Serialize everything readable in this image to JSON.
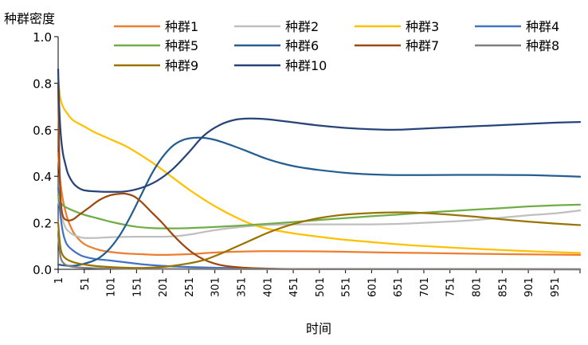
{
  "chart_data": {
    "type": "line",
    "title": "",
    "ylabel": "种群密度",
    "xlabel": "时间",
    "xlim": [
      1,
      1000
    ],
    "ylim": [
      0,
      1.0
    ],
    "grid": false,
    "legend_position": "top",
    "x_ticks": [
      1,
      51,
      101,
      151,
      201,
      251,
      301,
      351,
      401,
      451,
      501,
      551,
      601,
      651,
      701,
      751,
      801,
      851,
      901,
      951
    ],
    "x_tick_labels": [
      "1",
      "51",
      "101",
      "151",
      "201",
      "251",
      "301",
      "351",
      "401",
      "451",
      "501",
      "551",
      "601",
      "651",
      "701",
      "751",
      "801",
      "851",
      "901",
      "951"
    ],
    "y_ticks": [
      0.0,
      0.2,
      0.4,
      0.6,
      0.8,
      1.0
    ],
    "y_tick_labels": [
      "0.0",
      "0.2",
      "0.4",
      "0.6",
      "0.8",
      "1.0"
    ],
    "series": [
      {
        "name": "种群1",
        "color": "#ED7D31",
        "points": [
          [
            1,
            0.5
          ],
          [
            5,
            0.38
          ],
          [
            10,
            0.3
          ],
          [
            15,
            0.25
          ],
          [
            20,
            0.21
          ],
          [
            30,
            0.16
          ],
          [
            40,
            0.13
          ],
          [
            50,
            0.11
          ],
          [
            60,
            0.098
          ],
          [
            80,
            0.083
          ],
          [
            100,
            0.075
          ],
          [
            130,
            0.068
          ],
          [
            160,
            0.065
          ],
          [
            200,
            0.062
          ],
          [
            250,
            0.065
          ],
          [
            300,
            0.072
          ],
          [
            350,
            0.076
          ],
          [
            400,
            0.078
          ],
          [
            500,
            0.077
          ],
          [
            600,
            0.073
          ],
          [
            700,
            0.07
          ],
          [
            800,
            0.067
          ],
          [
            900,
            0.064
          ],
          [
            1000,
            0.062
          ]
        ]
      },
      {
        "name": "种群2",
        "color": "#BFBFBF",
        "points": [
          [
            1,
            0.3
          ],
          [
            5,
            0.25
          ],
          [
            10,
            0.21
          ],
          [
            15,
            0.18
          ],
          [
            20,
            0.165
          ],
          [
            30,
            0.148
          ],
          [
            40,
            0.14
          ],
          [
            50,
            0.135
          ],
          [
            75,
            0.135
          ],
          [
            100,
            0.138
          ],
          [
            150,
            0.14
          ],
          [
            200,
            0.14
          ],
          [
            230,
            0.143
          ],
          [
            260,
            0.152
          ],
          [
            300,
            0.168
          ],
          [
            350,
            0.182
          ],
          [
            400,
            0.19
          ],
          [
            450,
            0.193
          ],
          [
            500,
            0.193
          ],
          [
            600,
            0.193
          ],
          [
            650,
            0.195
          ],
          [
            700,
            0.2
          ],
          [
            750,
            0.205
          ],
          [
            800,
            0.212
          ],
          [
            850,
            0.222
          ],
          [
            900,
            0.232
          ],
          [
            950,
            0.24
          ],
          [
            1000,
            0.253
          ]
        ]
      },
      {
        "name": "种群3",
        "color": "#FFC000",
        "points": [
          [
            1,
            0.82
          ],
          [
            5,
            0.74
          ],
          [
            10,
            0.7
          ],
          [
            20,
            0.665
          ],
          [
            30,
            0.64
          ],
          [
            50,
            0.615
          ],
          [
            70,
            0.59
          ],
          [
            100,
            0.56
          ],
          [
            130,
            0.53
          ],
          [
            160,
            0.49
          ],
          [
            190,
            0.445
          ],
          [
            220,
            0.395
          ],
          [
            250,
            0.345
          ],
          [
            280,
            0.3
          ],
          [
            310,
            0.26
          ],
          [
            340,
            0.225
          ],
          [
            370,
            0.195
          ],
          [
            400,
            0.175
          ],
          [
            450,
            0.155
          ],
          [
            500,
            0.14
          ],
          [
            550,
            0.127
          ],
          [
            600,
            0.117
          ],
          [
            650,
            0.108
          ],
          [
            700,
            0.1
          ],
          [
            800,
            0.088
          ],
          [
            900,
            0.078
          ],
          [
            1000,
            0.07
          ]
        ]
      },
      {
        "name": "种群4",
        "color": "#4472C4",
        "points": [
          [
            1,
            0.35
          ],
          [
            5,
            0.24
          ],
          [
            10,
            0.16
          ],
          [
            15,
            0.12
          ],
          [
            20,
            0.1
          ],
          [
            30,
            0.08
          ],
          [
            40,
            0.065
          ],
          [
            50,
            0.055
          ],
          [
            70,
            0.045
          ],
          [
            100,
            0.038
          ],
          [
            130,
            0.03
          ],
          [
            160,
            0.022
          ],
          [
            200,
            0.015
          ],
          [
            250,
            0.01
          ],
          [
            300,
            0.007
          ],
          [
            400,
            0.003
          ],
          [
            500,
            0.001
          ],
          [
            1000,
            0.0
          ]
        ]
      },
      {
        "name": "种群5",
        "color": "#70AD47",
        "points": [
          [
            1,
            0.32
          ],
          [
            5,
            0.29
          ],
          [
            10,
            0.275
          ],
          [
            20,
            0.262
          ],
          [
            30,
            0.252
          ],
          [
            50,
            0.235
          ],
          [
            75,
            0.22
          ],
          [
            100,
            0.205
          ],
          [
            125,
            0.193
          ],
          [
            150,
            0.183
          ],
          [
            175,
            0.178
          ],
          [
            200,
            0.176
          ],
          [
            250,
            0.177
          ],
          [
            300,
            0.182
          ],
          [
            350,
            0.188
          ],
          [
            400,
            0.195
          ],
          [
            450,
            0.203
          ],
          [
            500,
            0.212
          ],
          [
            550,
            0.22
          ],
          [
            600,
            0.228
          ],
          [
            650,
            0.235
          ],
          [
            700,
            0.243
          ],
          [
            750,
            0.25
          ],
          [
            800,
            0.257
          ],
          [
            850,
            0.263
          ],
          [
            900,
            0.27
          ],
          [
            950,
            0.275
          ],
          [
            1000,
            0.278
          ]
        ]
      },
      {
        "name": "种群6",
        "color": "#255E91",
        "points": [
          [
            1,
            0.02
          ],
          [
            30,
            0.015
          ],
          [
            60,
            0.03
          ],
          [
            80,
            0.05
          ],
          [
            100,
            0.09
          ],
          [
            120,
            0.15
          ],
          [
            140,
            0.23
          ],
          [
            160,
            0.32
          ],
          [
            180,
            0.41
          ],
          [
            200,
            0.48
          ],
          [
            220,
            0.53
          ],
          [
            240,
            0.556
          ],
          [
            260,
            0.565
          ],
          [
            280,
            0.565
          ],
          [
            300,
            0.557
          ],
          [
            320,
            0.543
          ],
          [
            340,
            0.527
          ],
          [
            360,
            0.51
          ],
          [
            380,
            0.492
          ],
          [
            400,
            0.475
          ],
          [
            430,
            0.455
          ],
          [
            460,
            0.44
          ],
          [
            500,
            0.427
          ],
          [
            550,
            0.415
          ],
          [
            600,
            0.408
          ],
          [
            650,
            0.405
          ],
          [
            700,
            0.405
          ],
          [
            800,
            0.406
          ],
          [
            900,
            0.405
          ],
          [
            950,
            0.402
          ],
          [
            1000,
            0.398
          ]
        ]
      },
      {
        "name": "种群7",
        "color": "#9E480E",
        "points": [
          [
            1,
            0.8
          ],
          [
            3,
            0.5
          ],
          [
            5,
            0.33
          ],
          [
            8,
            0.25
          ],
          [
            12,
            0.22
          ],
          [
            20,
            0.21
          ],
          [
            30,
            0.215
          ],
          [
            40,
            0.232
          ],
          [
            60,
            0.265
          ],
          [
            80,
            0.298
          ],
          [
            100,
            0.318
          ],
          [
            120,
            0.325
          ],
          [
            130,
            0.325
          ],
          [
            145,
            0.315
          ],
          [
            160,
            0.29
          ],
          [
            180,
            0.245
          ],
          [
            200,
            0.2
          ],
          [
            220,
            0.15
          ],
          [
            240,
            0.105
          ],
          [
            260,
            0.068
          ],
          [
            280,
            0.042
          ],
          [
            300,
            0.025
          ],
          [
            320,
            0.015
          ],
          [
            350,
            0.008
          ],
          [
            400,
            0.003
          ],
          [
            500,
            0.001
          ],
          [
            1000,
            0.0
          ]
        ]
      },
      {
        "name": "种群8",
        "color": "#7F7F7F",
        "points": [
          [
            1,
            0.15
          ],
          [
            5,
            0.06
          ],
          [
            10,
            0.03
          ],
          [
            20,
            0.015
          ],
          [
            40,
            0.008
          ],
          [
            80,
            0.004
          ],
          [
            150,
            0.002
          ],
          [
            300,
            0.001
          ],
          [
            1000,
            0.0
          ]
        ]
      },
      {
        "name": "种群9",
        "color": "#997300",
        "points": [
          [
            1,
            0.2
          ],
          [
            5,
            0.1
          ],
          [
            10,
            0.06
          ],
          [
            20,
            0.04
          ],
          [
            40,
            0.025
          ],
          [
            70,
            0.015
          ],
          [
            100,
            0.01
          ],
          [
            150,
            0.006
          ],
          [
            200,
            0.01
          ],
          [
            250,
            0.025
          ],
          [
            280,
            0.04
          ],
          [
            310,
            0.065
          ],
          [
            340,
            0.095
          ],
          [
            370,
            0.125
          ],
          [
            400,
            0.155
          ],
          [
            430,
            0.18
          ],
          [
            460,
            0.2
          ],
          [
            500,
            0.22
          ],
          [
            550,
            0.235
          ],
          [
            600,
            0.242
          ],
          [
            650,
            0.245
          ],
          [
            700,
            0.242
          ],
          [
            750,
            0.235
          ],
          [
            800,
            0.226
          ],
          [
            850,
            0.215
          ],
          [
            900,
            0.205
          ],
          [
            950,
            0.197
          ],
          [
            1000,
            0.19
          ]
        ]
      },
      {
        "name": "种群10",
        "color": "#264478",
        "points": [
          [
            1,
            0.86
          ],
          [
            3,
            0.7
          ],
          [
            6,
            0.58
          ],
          [
            10,
            0.5
          ],
          [
            15,
            0.45
          ],
          [
            20,
            0.41
          ],
          [
            30,
            0.37
          ],
          [
            40,
            0.35
          ],
          [
            50,
            0.34
          ],
          [
            70,
            0.335
          ],
          [
            100,
            0.333
          ],
          [
            130,
            0.335
          ],
          [
            160,
            0.35
          ],
          [
            190,
            0.38
          ],
          [
            220,
            0.43
          ],
          [
            250,
            0.5
          ],
          [
            280,
            0.575
          ],
          [
            310,
            0.62
          ],
          [
            340,
            0.643
          ],
          [
            370,
            0.648
          ],
          [
            400,
            0.645
          ],
          [
            450,
            0.632
          ],
          [
            500,
            0.618
          ],
          [
            550,
            0.608
          ],
          [
            600,
            0.602
          ],
          [
            650,
            0.6
          ],
          [
            700,
            0.605
          ],
          [
            750,
            0.61
          ],
          [
            800,
            0.615
          ],
          [
            850,
            0.62
          ],
          [
            900,
            0.625
          ],
          [
            950,
            0.63
          ],
          [
            1000,
            0.633
          ]
        ]
      }
    ]
  }
}
